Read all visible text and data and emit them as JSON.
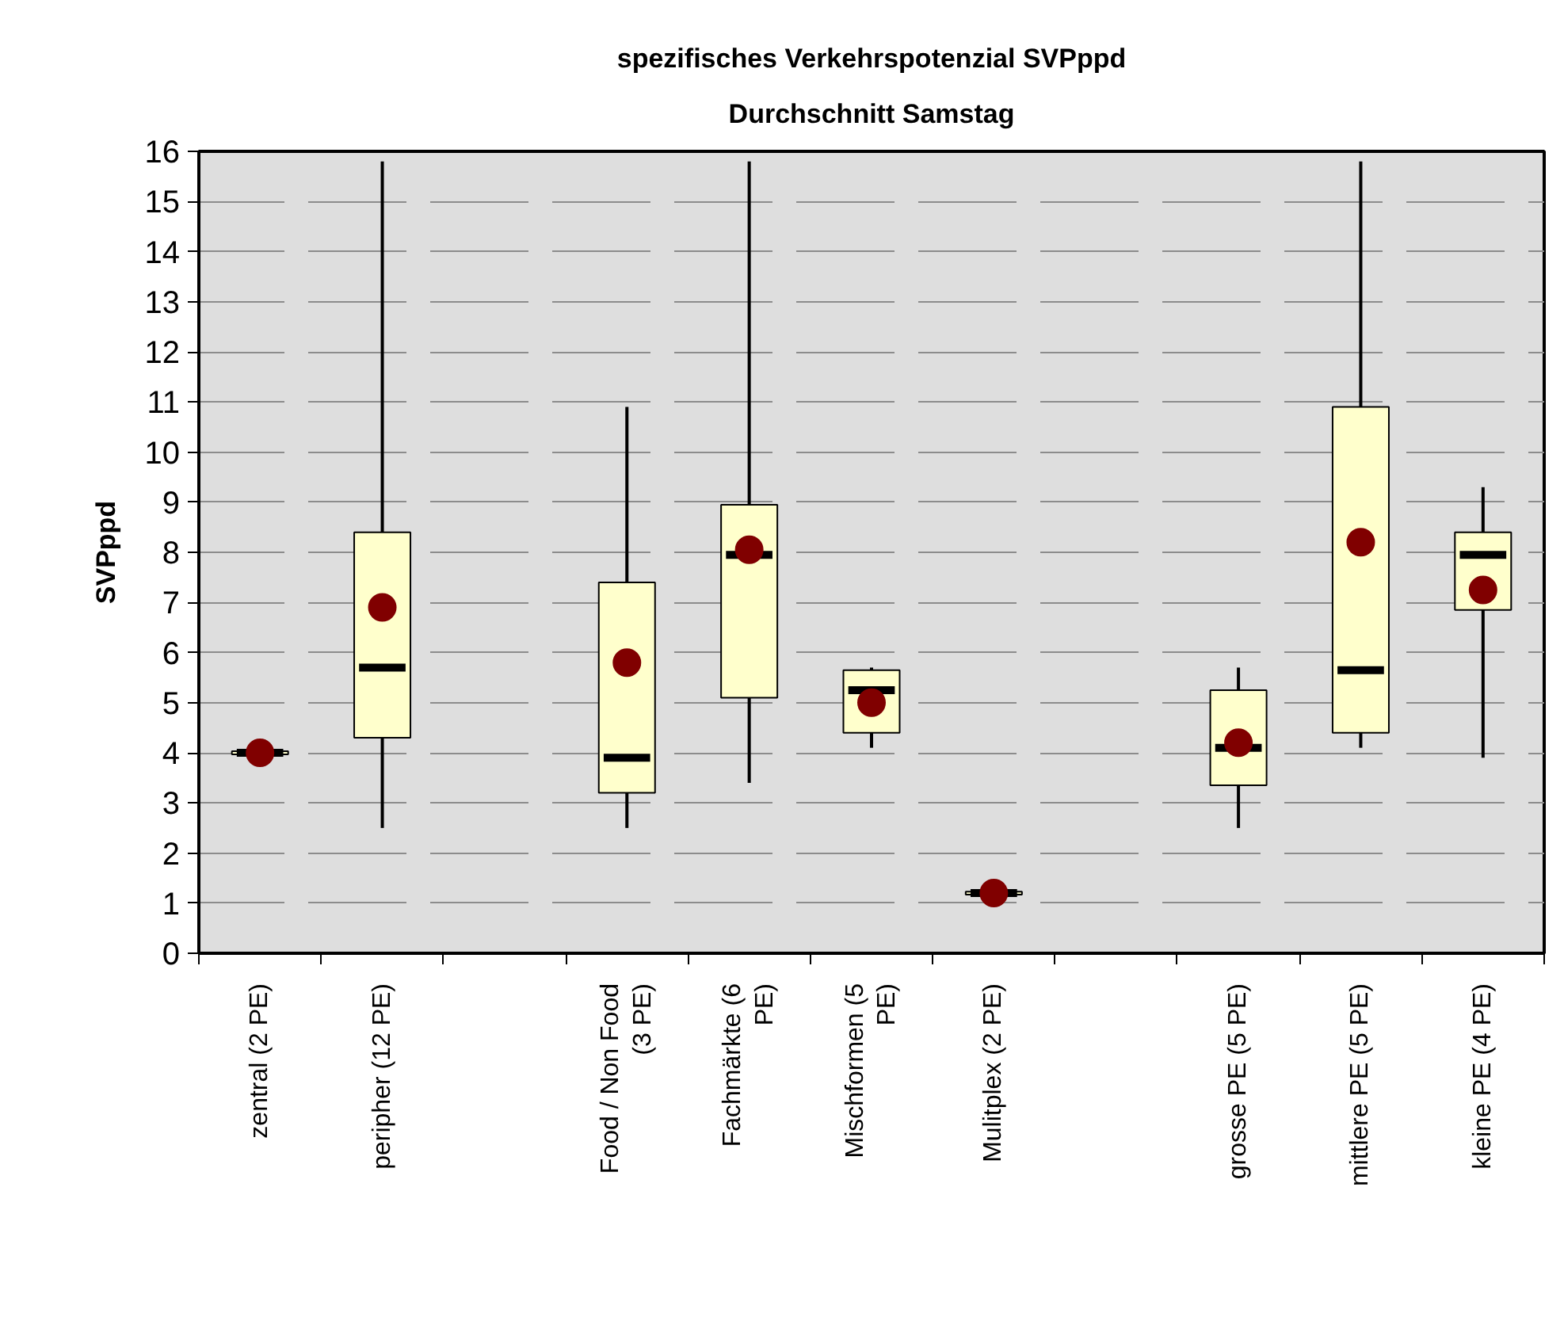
{
  "chart_data": {
    "type": "box",
    "title": "spezifisches Verkehrspotenzial SVPppd",
    "subtitle": "Durchschnitt Samstag",
    "ylabel": "SVPppd",
    "categories": [
      "zentral (2 PE)",
      "peripher (12 PE)",
      null,
      "Food / Non Food\n(3 PE)",
      "Fachmärkte (6\nPE)",
      "Mischformen (5\nPE)",
      "Mulitplex (2 PE)",
      null,
      "grosse PE (5 PE)",
      "mittlere PE (5 PE)",
      "kleine PE (4 PE)"
    ],
    "series": [
      {
        "color": "#ffffcc",
        "boxes": [
          {
            "low": 3.97,
            "q1": 3.97,
            "median": 4.0,
            "q3": 4.03,
            "high": 4.03,
            "mean": 4.0
          },
          {
            "low": 2.5,
            "q1": 4.3,
            "median": 5.7,
            "q3": 8.4,
            "high": 15.8,
            "mean": 6.9
          },
          null,
          {
            "low": 2.5,
            "q1": 3.2,
            "median": 3.9,
            "q3": 7.4,
            "high": 10.9,
            "mean": 5.8
          },
          {
            "low": 3.4,
            "q1": 5.1,
            "median": 7.95,
            "q3": 8.95,
            "high": 15.8,
            "mean": 8.05
          },
          {
            "low": 4.1,
            "q1": 4.4,
            "median": 5.25,
            "q3": 5.65,
            "high": 5.7,
            "mean": 5.0
          },
          {
            "low": 1.17,
            "q1": 1.17,
            "median": 1.2,
            "q3": 1.23,
            "high": 1.23,
            "mean": 1.2
          },
          null,
          {
            "low": 2.5,
            "q1": 3.35,
            "median": 4.1,
            "q3": 5.25,
            "high": 5.7,
            "mean": 4.2
          },
          {
            "low": 4.1,
            "q1": 4.4,
            "median": 5.65,
            "q3": 10.9,
            "high": 15.8,
            "mean": 8.2
          },
          {
            "low": 3.9,
            "q1": 6.85,
            "median": 7.95,
            "q3": 8.4,
            "high": 9.3,
            "mean": 7.25
          }
        ]
      }
    ],
    "ylim": [
      0,
      16
    ],
    "yticks": [
      0,
      1,
      2,
      3,
      4,
      5,
      6,
      7,
      8,
      9,
      10,
      11,
      12,
      13,
      14,
      15,
      16
    ],
    "grid": "y"
  }
}
